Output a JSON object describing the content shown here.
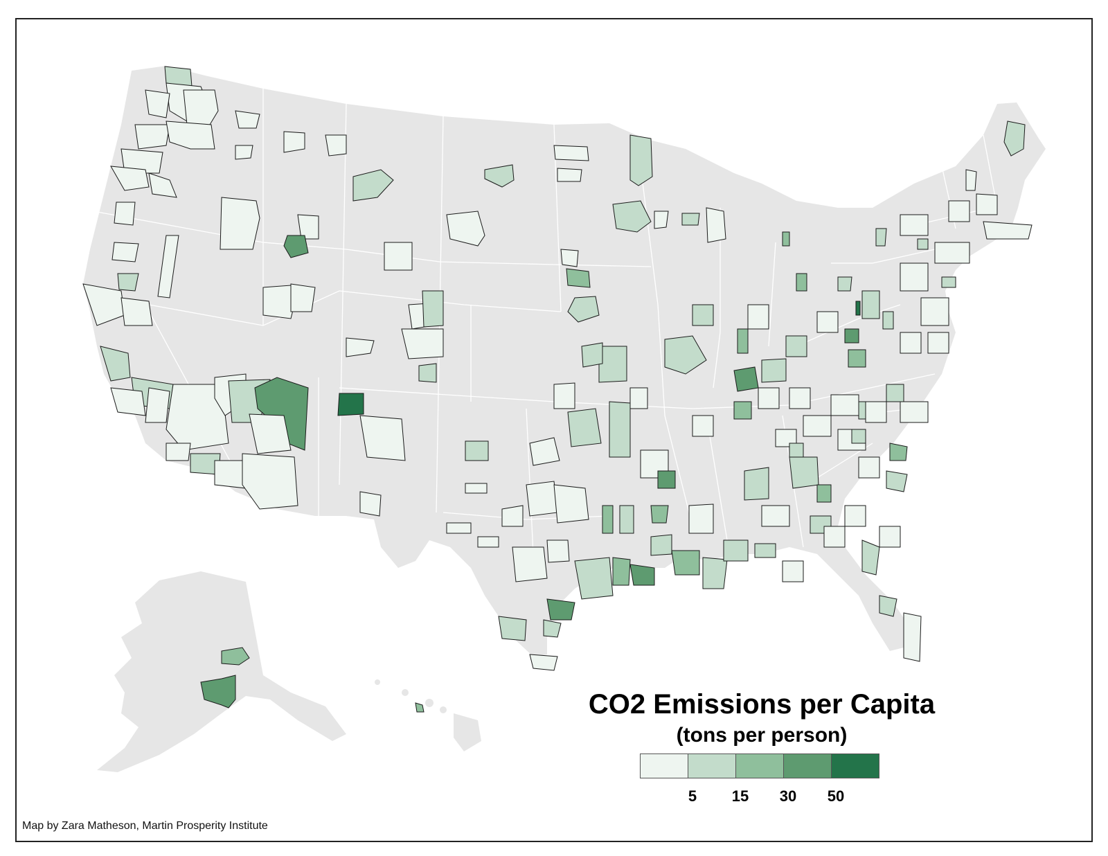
{
  "map": {
    "title": "CO2 Emissions per Capita",
    "subtitle": "(tons per person)",
    "credit": "Map by Zara Matheson, Martin Prosperity Institute",
    "colors": {
      "land": "#e6e6e6",
      "state_border": "#ffffff",
      "region_border": "#1a1a1a",
      "classes": [
        "#eef5f0",
        "#c3dccb",
        "#8fbf9c",
        "#5e9b70",
        "#23744a"
      ]
    },
    "legend": {
      "classes": [
        {
          "color": "#eef5f0"
        },
        {
          "color": "#c3dccb"
        },
        {
          "color": "#8fbf9c"
        },
        {
          "color": "#5e9b70"
        },
        {
          "color": "#23744a"
        }
      ],
      "break_labels": [
        "5",
        "15",
        "30",
        "50"
      ]
    }
  }
}
